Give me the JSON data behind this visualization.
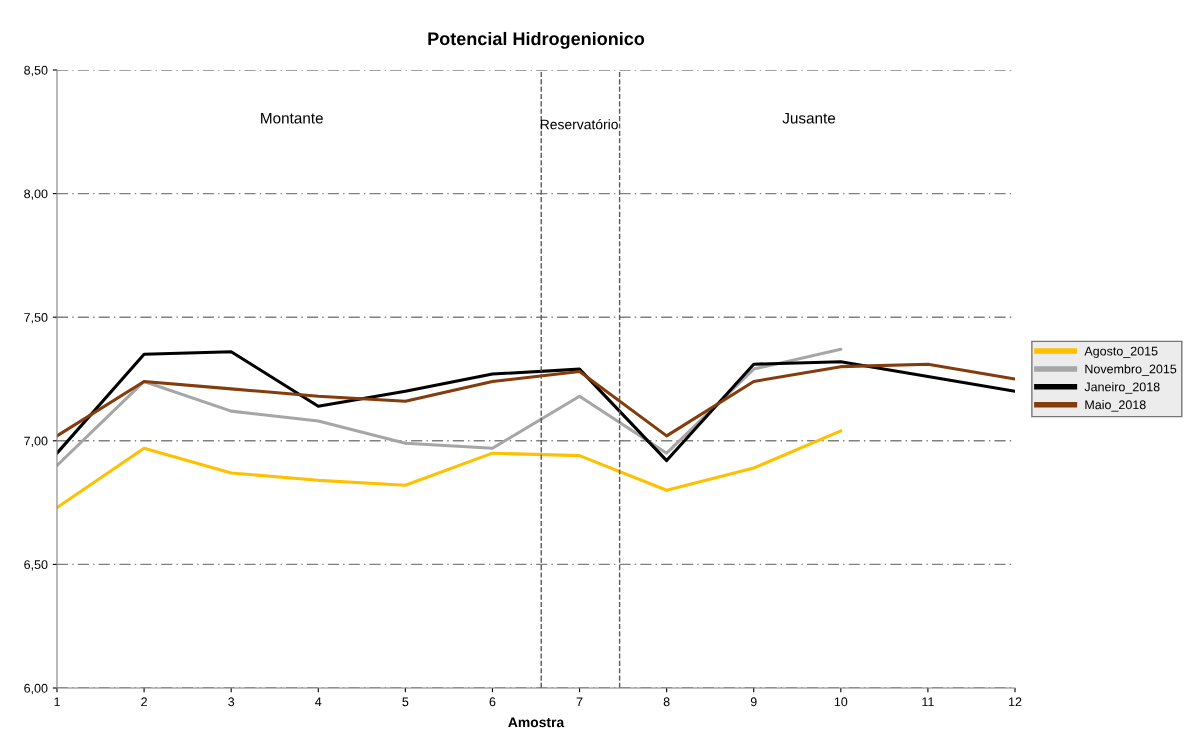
{
  "chart_data": {
    "type": "line",
    "title": "Potencial Hidrogenionico",
    "xlabel": "Amostra",
    "xlim": [
      1,
      12
    ],
    "xticks": [
      1,
      2,
      3,
      4,
      5,
      6,
      7,
      8,
      9,
      10,
      11,
      12
    ],
    "ylim": [
      6,
      8.5
    ],
    "yticks": [
      {
        "value": 6,
        "label": "6,00"
      },
      {
        "value": 6.5,
        "label": "6,50"
      },
      {
        "value": 7,
        "label": "7,00"
      },
      {
        "value": 7.5,
        "label": "7,50"
      },
      {
        "value": 8,
        "label": "8,00"
      },
      {
        "value": 8.5,
        "label": "8,50"
      }
    ],
    "grid": "y",
    "legend": "right",
    "marker": "none",
    "line_style": "solid",
    "series": [
      {
        "name": "Agosto_2015",
        "color": "#ffc000",
        "x": [
          1,
          2,
          3,
          4,
          5,
          6,
          7,
          8,
          9,
          10
        ],
        "values": [
          6.73,
          6.97,
          6.87,
          6.84,
          6.82,
          6.95,
          6.94,
          6.8,
          6.89,
          7.04
        ]
      },
      {
        "name": "Novembro_2015",
        "color": "#a6a6a6",
        "x": [
          1,
          2,
          3,
          4,
          5,
          6,
          7,
          8,
          9,
          10
        ],
        "values": [
          6.9,
          7.24,
          7.12,
          7.08,
          6.99,
          6.97,
          7.18,
          6.95,
          7.29,
          7.37
        ]
      },
      {
        "name": "Janeiro_2018",
        "color": "#000000",
        "x": [
          1,
          2,
          3,
          4,
          5,
          6,
          7,
          8,
          9,
          10,
          11,
          12
        ],
        "values": [
          6.95,
          7.35,
          7.36,
          7.14,
          7.2,
          7.27,
          7.29,
          6.92,
          7.31,
          7.32,
          7.26,
          7.2
        ]
      },
      {
        "name": "Maio_2018",
        "color": "#843c0c",
        "x": [
          1,
          2,
          3,
          4,
          5,
          6,
          7,
          8,
          9,
          10,
          11,
          12
        ],
        "values": [
          7.02,
          7.24,
          7.21,
          7.18,
          7.16,
          7.24,
          7.28,
          7.02,
          7.24,
          7.3,
          7.31,
          7.25
        ]
      }
    ],
    "ref_lines": [
      {
        "axis": "x",
        "value": 6.56,
        "color": "#595959",
        "line_style": "dashed"
      },
      {
        "axis": "x",
        "value": 7.46,
        "color": "#595959",
        "line_style": "dashed"
      }
    ],
    "annotations": [
      "Montante",
      "Reservatório",
      "Jusante"
    ]
  }
}
